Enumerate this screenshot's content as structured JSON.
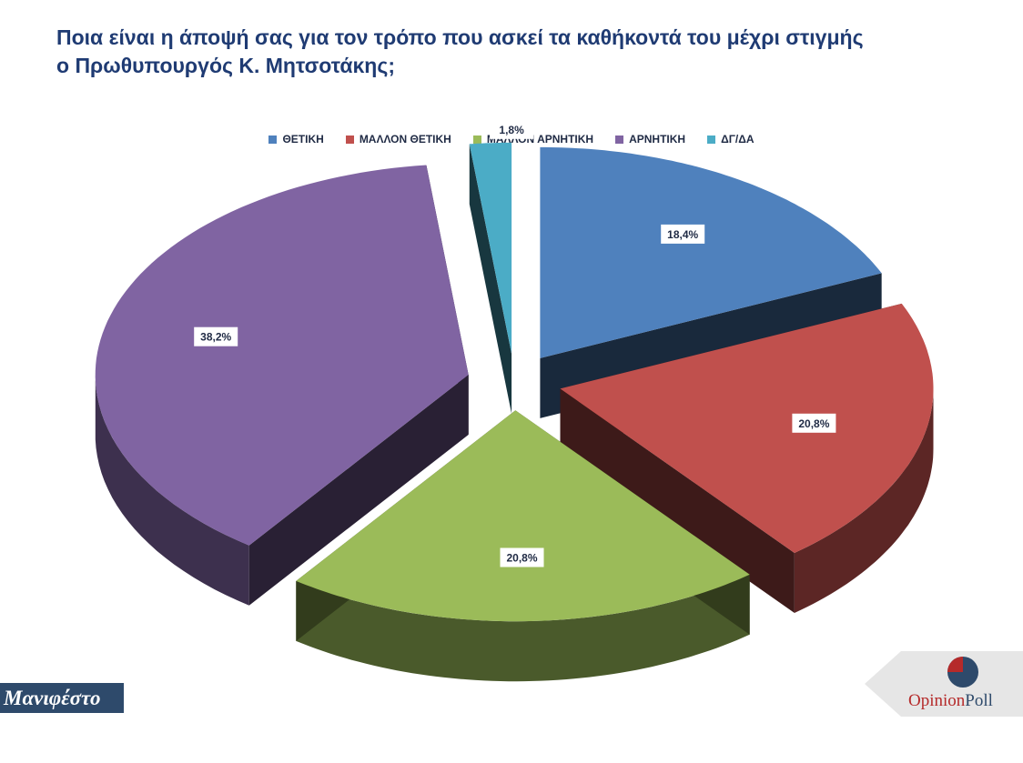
{
  "title_lines": [
    "Ποια είναι η άποψή σας για τον τρόπο που ασκεί τα καθήκοντά του μέχρι στιγμής",
    "ο Πρωθυπουργός Κ. Μητσοτάκης;"
  ],
  "chart_data": {
    "type": "pie",
    "style": "3d-exploded",
    "legend_position": "top",
    "slices": [
      {
        "label": "ΘΕΤΙΚΗ",
        "value": 18.4,
        "display": "18,4%",
        "color": "#4f81bd"
      },
      {
        "label": "ΜΑΛΛΟΝ ΘΕΤΙΚΗ",
        "value": 20.8,
        "display": "20,8%",
        "color": "#c0504d"
      },
      {
        "label": "ΜΑΛΛΟΝ ΑΡΝΗΤΙΚΗ",
        "value": 20.8,
        "display": "20,8%",
        "color": "#9bbb59"
      },
      {
        "label": "ΑΡΝΗΤΙΚΗ",
        "value": 38.2,
        "display": "38,2%",
        "color": "#8064a2"
      },
      {
        "label": "ΔΓ/ΔΑ",
        "value": 1.8,
        "display": "1,8%",
        "color": "#4bacc6"
      }
    ]
  },
  "footer": {
    "source_logo": "Μανιφέστο",
    "brand_part1": "Opinion",
    "brand_part2": "Poll"
  }
}
